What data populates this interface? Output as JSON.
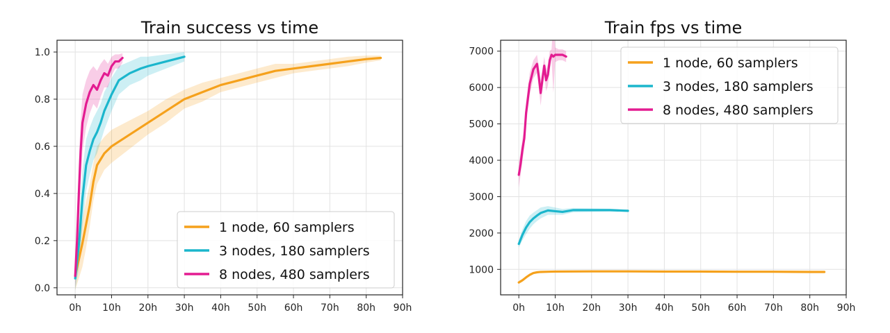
{
  "chart_data": [
    {
      "type": "line",
      "title": "Train success vs time",
      "xlabel": "",
      "ylabel": "",
      "xlim": [
        -5,
        90
      ],
      "ylim": [
        -0.03,
        1.05
      ],
      "xticks": [
        0,
        10,
        20,
        30,
        40,
        50,
        60,
        70,
        80,
        90
      ],
      "xtick_labels": [
        "0h",
        "10h",
        "20h",
        "30h",
        "40h",
        "50h",
        "60h",
        "70h",
        "80h",
        "90h"
      ],
      "yticks": [
        0.0,
        0.2,
        0.4,
        0.6,
        0.8,
        1.0
      ],
      "ytick_labels": [
        "0.0",
        "0.2",
        "0.4",
        "0.6",
        "0.8",
        "1.0"
      ],
      "grid": true,
      "legend_position": "lower-right",
      "series": [
        {
          "name": "1 node, 60 samplers",
          "color": "#f5a11c",
          "x": [
            0,
            1,
            2,
            3,
            4,
            5,
            6,
            8,
            10,
            15,
            20,
            25,
            30,
            35,
            40,
            45,
            50,
            55,
            60,
            65,
            70,
            75,
            80,
            84
          ],
          "y": [
            0.05,
            0.12,
            0.19,
            0.27,
            0.35,
            0.45,
            0.52,
            0.57,
            0.6,
            0.65,
            0.7,
            0.75,
            0.8,
            0.83,
            0.86,
            0.88,
            0.9,
            0.92,
            0.93,
            0.94,
            0.95,
            0.96,
            0.97,
            0.975
          ],
          "band": [
            0.06,
            0.08,
            0.1,
            0.1,
            0.09,
            0.08,
            0.08,
            0.07,
            0.07,
            0.06,
            0.05,
            0.05,
            0.04,
            0.04,
            0.03,
            0.03,
            0.03,
            0.03,
            0.02,
            0.02,
            0.02,
            0.02,
            0.015,
            0.01
          ]
        },
        {
          "name": "3 nodes, 180 samplers",
          "color": "#1bb6cc",
          "x": [
            0,
            1,
            2,
            3,
            4,
            5,
            6,
            7,
            8,
            10,
            12,
            15,
            18,
            20,
            25,
            30
          ],
          "y": [
            0.04,
            0.18,
            0.38,
            0.52,
            0.58,
            0.63,
            0.66,
            0.7,
            0.75,
            0.82,
            0.88,
            0.91,
            0.93,
            0.94,
            0.96,
            0.98
          ],
          "band": [
            0.05,
            0.1,
            0.12,
            0.11,
            0.1,
            0.09,
            0.09,
            0.08,
            0.08,
            0.07,
            0.06,
            0.05,
            0.05,
            0.04,
            0.03,
            0.02
          ]
        },
        {
          "name": "8 nodes, 480 samplers",
          "color": "#e31c91",
          "x": [
            0,
            0.5,
            1,
            1.5,
            2,
            3,
            4,
            5,
            6,
            7,
            8,
            9,
            10,
            11,
            12,
            13
          ],
          "y": [
            0.05,
            0.2,
            0.4,
            0.58,
            0.7,
            0.78,
            0.83,
            0.86,
            0.84,
            0.88,
            0.91,
            0.9,
            0.94,
            0.96,
            0.96,
            0.975
          ],
          "band": [
            0.05,
            0.1,
            0.14,
            0.13,
            0.12,
            0.1,
            0.09,
            0.08,
            0.08,
            0.07,
            0.06,
            0.05,
            0.04,
            0.03,
            0.03,
            0.02
          ]
        }
      ]
    },
    {
      "type": "line",
      "title": "Train fps vs time",
      "xlabel": "",
      "ylabel": "",
      "xlim": [
        -5,
        90
      ],
      "ylim": [
        300,
        7300
      ],
      "xticks": [
        0,
        10,
        20,
        30,
        40,
        50,
        60,
        70,
        80,
        90
      ],
      "xtick_labels": [
        "0h",
        "10h",
        "20h",
        "30h",
        "40h",
        "50h",
        "60h",
        "70h",
        "80h",
        "90h"
      ],
      "yticks": [
        1000,
        2000,
        3000,
        4000,
        5000,
        6000,
        7000
      ],
      "ytick_labels": [
        "1000",
        "2000",
        "3000",
        "4000",
        "5000",
        "6000",
        "7000"
      ],
      "grid": true,
      "legend_position": "upper-right",
      "series": [
        {
          "name": "1 node, 60 samplers",
          "color": "#f5a11c",
          "x": [
            0,
            1,
            2,
            3,
            4,
            5,
            6,
            8,
            10,
            20,
            30,
            40,
            50,
            60,
            70,
            80,
            84
          ],
          "y": [
            640,
            700,
            780,
            850,
            900,
            920,
            930,
            935,
            940,
            945,
            945,
            940,
            940,
            935,
            935,
            930,
            930
          ],
          "band": [
            40,
            40,
            30,
            30,
            20,
            20,
            20,
            20,
            20,
            20,
            20,
            20,
            20,
            20,
            20,
            20,
            20
          ]
        },
        {
          "name": "3 nodes, 180 samplers",
          "color": "#1bb6cc",
          "x": [
            0,
            1,
            2,
            3,
            4,
            5,
            6,
            8,
            10,
            12,
            15,
            20,
            25,
            30
          ],
          "y": [
            1700,
            1950,
            2150,
            2300,
            2400,
            2480,
            2550,
            2620,
            2600,
            2580,
            2630,
            2630,
            2630,
            2610
          ],
          "band": [
            100,
            150,
            180,
            180,
            160,
            150,
            150,
            120,
            100,
            80,
            60,
            50,
            40,
            30
          ]
        },
        {
          "name": "8 nodes, 480 samplers",
          "color": "#e31c91",
          "x": [
            0,
            0.5,
            1,
            1.5,
            2,
            3,
            4,
            5,
            5.5,
            6,
            7,
            7.5,
            8,
            8.5,
            9,
            9.5,
            10,
            11,
            12,
            13
          ],
          "y": [
            3600,
            3900,
            4300,
            4600,
            5300,
            6100,
            6500,
            6650,
            6300,
            5850,
            6600,
            6200,
            6350,
            6750,
            6900,
            6850,
            6900,
            6900,
            6900,
            6850
          ],
          "band": [
            350,
            300,
            300,
            300,
            300,
            300,
            250,
            250,
            300,
            350,
            250,
            300,
            300,
            250,
            150,
            1000,
            200,
            150,
            150,
            150
          ]
        }
      ]
    }
  ]
}
